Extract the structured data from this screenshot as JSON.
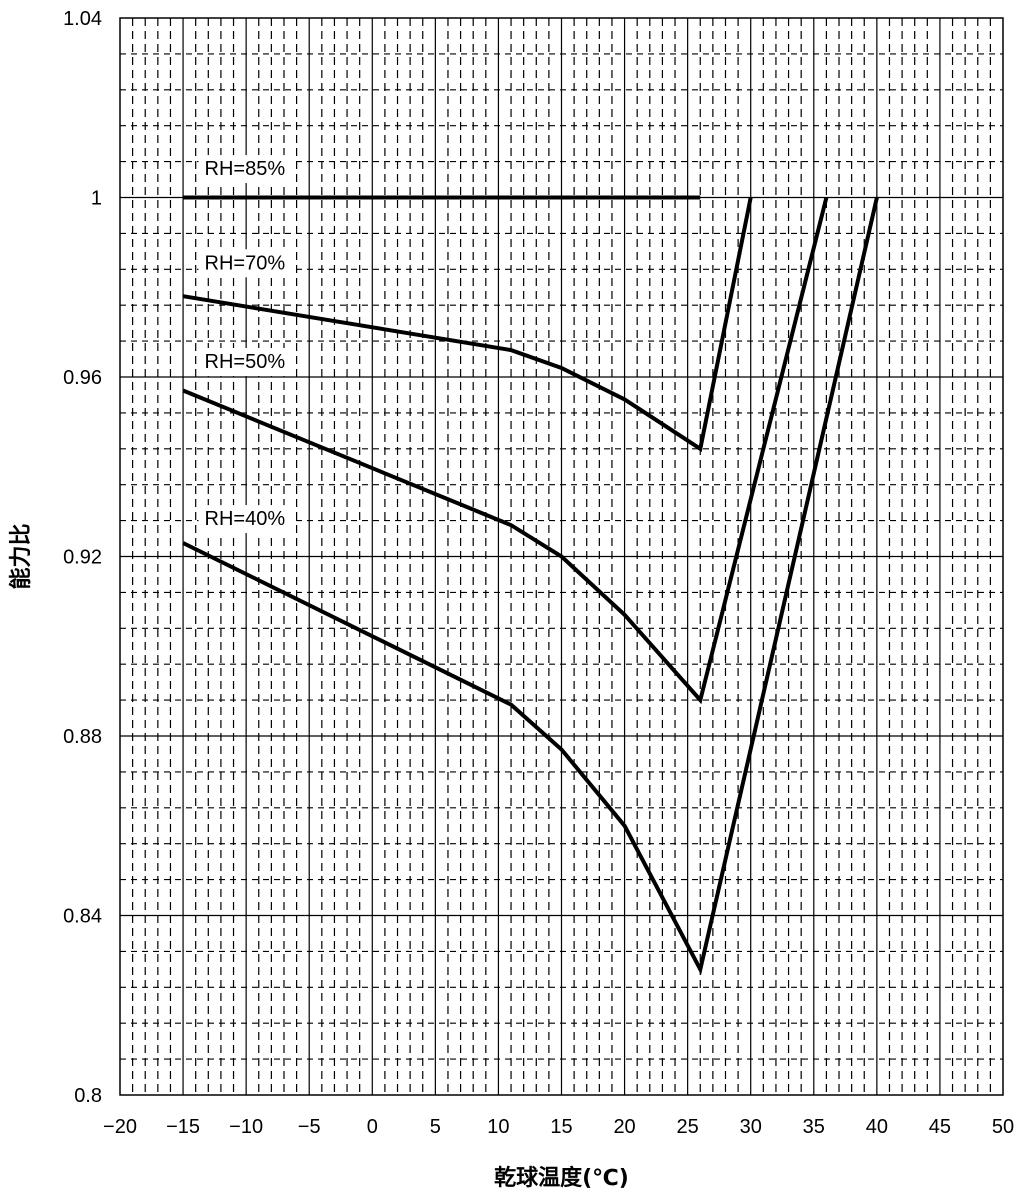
{
  "chart_data": {
    "type": "line",
    "title": "",
    "xlabel": "乾球温度(℃)",
    "ylabel": "能力比",
    "xlim": [
      -20,
      50
    ],
    "ylim": [
      0.8,
      1.04
    ],
    "x_ticks": [
      -20,
      -15,
      -10,
      -5,
      0,
      5,
      10,
      15,
      20,
      25,
      30,
      35,
      40,
      45,
      50
    ],
    "x_tick_labels": [
      "−20",
      "−15",
      "−10",
      "−5",
      "0",
      "5",
      "10",
      "15",
      "20",
      "25",
      "30",
      "35",
      "40",
      "45",
      "50"
    ],
    "y_ticks": [
      0.8,
      0.84,
      0.88,
      0.92,
      0.96,
      1.0,
      1.04
    ],
    "y_tick_labels": [
      "0.8",
      "0.84",
      "0.88",
      "0.92",
      "0.96",
      "1",
      "1.04"
    ],
    "grid": true,
    "series": [
      {
        "name": "RH=85%",
        "x": [
          -15,
          26
        ],
        "y": [
          1.0,
          1.0
        ]
      },
      {
        "name": "RH=70%",
        "x": [
          -15,
          11,
          15,
          20,
          26,
          30
        ],
        "y": [
          0.978,
          0.966,
          0.962,
          0.955,
          0.944,
          1.0
        ]
      },
      {
        "name": "RH=50%",
        "x": [
          -15,
          11,
          15,
          20,
          26,
          36
        ],
        "y": [
          0.957,
          0.927,
          0.92,
          0.907,
          0.888,
          1.0
        ]
      },
      {
        "name": "RH=40%",
        "x": [
          -15,
          11,
          15,
          20,
          26,
          40
        ],
        "y": [
          0.923,
          0.887,
          0.877,
          0.86,
          0.828,
          1.0
        ]
      }
    ],
    "annotations": [
      {
        "text": "RH=85%",
        "x": -13.3,
        "y": 1.005
      },
      {
        "text": "RH=70%",
        "x": -13.3,
        "y": 0.984
      },
      {
        "text": "RH=50%",
        "x": -13.3,
        "y": 0.962
      },
      {
        "text": "RH=40%",
        "x": -13.3,
        "y": 0.927
      }
    ],
    "line_color": "#000000",
    "grid_color": "#000000"
  }
}
